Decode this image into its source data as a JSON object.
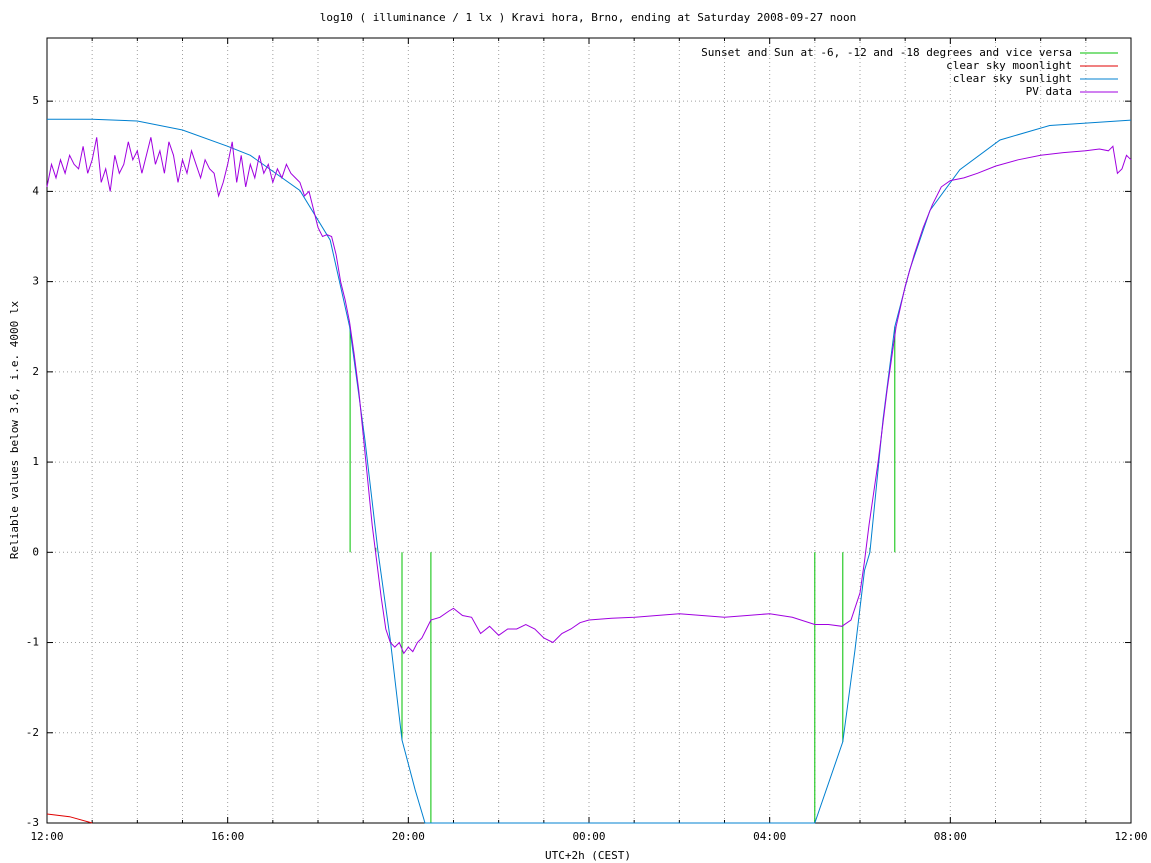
{
  "chart_data": {
    "type": "line",
    "title": "log10 ( illuminance / 1 lx ) Kravi hora, Brno, ending at Saturday 2008-09-27 noon",
    "x_label": "UTC+2h (CEST)",
    "y_label": "Reliable values below 3.6, i.e. 4000 lx",
    "xlim": [
      0,
      24
    ],
    "ylim": [
      -3,
      5.7
    ],
    "xticks": [
      {
        "value": 0,
        "label": "12:00"
      },
      {
        "value": 1,
        "label": null
      },
      {
        "value": 2,
        "label": null
      },
      {
        "value": 3,
        "label": null
      },
      {
        "value": 4,
        "label": "16:00"
      },
      {
        "value": 5,
        "label": null
      },
      {
        "value": 6,
        "label": null
      },
      {
        "value": 7,
        "label": null
      },
      {
        "value": 8,
        "label": "20:00"
      },
      {
        "value": 9,
        "label": null
      },
      {
        "value": 10,
        "label": null
      },
      {
        "value": 11,
        "label": null
      },
      {
        "value": 12,
        "label": "00:00"
      },
      {
        "value": 13,
        "label": null
      },
      {
        "value": 14,
        "label": null
      },
      {
        "value": 15,
        "label": null
      },
      {
        "value": 16,
        "label": "04:00"
      },
      {
        "value": 17,
        "label": null
      },
      {
        "value": 18,
        "label": null
      },
      {
        "value": 19,
        "label": null
      },
      {
        "value": 20,
        "label": "08:00"
      },
      {
        "value": 21,
        "label": null
      },
      {
        "value": 22,
        "label": null
      },
      {
        "value": 23,
        "label": null
      },
      {
        "value": 24,
        "label": "12:00"
      }
    ],
    "yticks": [
      -3,
      -2,
      -1,
      0,
      1,
      2,
      3,
      4,
      5
    ],
    "grid": true,
    "legend": "top-right",
    "series": [
      {
        "name": "Sunset and Sun at -6, -12 and -18 degrees and vice versa",
        "color": "#00c000",
        "x": [
          6.71,
          6.71,
          null,
          7.28,
          7.28,
          null,
          7.86,
          7.86,
          null,
          8.5,
          8.5,
          null,
          17.0,
          17.0,
          null,
          17.62,
          17.62,
          null,
          18.22,
          18.22,
          null,
          18.77,
          18.77
        ],
        "values": [
          0,
          2.5,
          null,
          0,
          0.05,
          null,
          0,
          -2.08,
          null,
          0,
          -3,
          null,
          0,
          -3,
          null,
          0,
          -2.1,
          null,
          0,
          0.05,
          null,
          0,
          2.5
        ]
      },
      {
        "name": "clear sky moonlight",
        "color": "#e00000",
        "x": [
          0,
          0.5,
          1.0
        ],
        "values": [
          -2.9,
          -2.93,
          -3.0
        ]
      },
      {
        "name": "clear sky sunlight",
        "color": "#0080d0",
        "x": [
          0,
          1.0,
          2.0,
          3.0,
          4.0,
          4.5,
          5.6,
          6.27,
          6.7,
          7.04,
          7.33,
          7.6,
          7.86,
          8.15,
          8.37,
          17.0,
          17.62,
          17.89,
          18.1,
          18.22,
          18.51,
          18.77,
          19.1,
          19.55,
          20.21,
          21.1,
          22.2,
          24.0
        ],
        "values": [
          4.8,
          4.8,
          4.78,
          4.68,
          4.5,
          4.4,
          4.01,
          3.46,
          2.5,
          1.24,
          0,
          -0.97,
          -2.08,
          -2.63,
          -3,
          -3,
          -2.1,
          -1.08,
          -0.2,
          0,
          1.47,
          2.5,
          3.13,
          3.79,
          4.24,
          4.57,
          4.73,
          4.79
        ]
      },
      {
        "name": "PV data",
        "color": "#a000e0",
        "x": [
          0,
          0.1,
          0.2,
          0.3,
          0.4,
          0.5,
          0.6,
          0.7,
          0.8,
          0.9,
          1.0,
          1.1,
          1.2,
          1.3,
          1.4,
          1.5,
          1.6,
          1.7,
          1.8,
          1.9,
          2.0,
          2.1,
          2.2,
          2.3,
          2.4,
          2.5,
          2.6,
          2.7,
          2.8,
          2.9,
          3.0,
          3.1,
          3.2,
          3.3,
          3.4,
          3.5,
          3.6,
          3.7,
          3.8,
          3.9,
          4.0,
          4.1,
          4.2,
          4.3,
          4.4,
          4.5,
          4.6,
          4.7,
          4.8,
          4.9,
          5.0,
          5.1,
          5.2,
          5.3,
          5.4,
          5.5,
          5.6,
          5.7,
          5.8,
          5.9,
          6.0,
          6.1,
          6.2,
          6.3,
          6.4,
          6.5,
          6.6,
          6.7,
          6.8,
          6.9,
          7.0,
          7.1,
          7.2,
          7.3,
          7.4,
          7.5,
          7.6,
          7.7,
          7.8,
          7.9,
          8.0,
          8.1,
          8.2,
          8.3,
          8.4,
          8.5,
          8.7,
          8.9,
          9.0,
          9.2,
          9.4,
          9.6,
          9.8,
          10.0,
          10.2,
          10.4,
          10.6,
          10.8,
          11.0,
          11.2,
          11.4,
          11.6,
          11.8,
          12.0,
          12.5,
          13.0,
          13.5,
          14.0,
          14.5,
          15.0,
          15.5,
          16.0,
          16.5,
          17.0,
          17.3,
          17.6,
          17.8,
          18.0,
          18.1,
          18.2,
          18.4,
          18.6,
          18.8,
          19.0,
          19.2,
          19.4,
          19.6,
          19.8,
          20.0,
          20.3,
          20.6,
          21.0,
          21.5,
          22.0,
          22.5,
          23.0,
          23.3,
          23.5,
          23.6,
          23.7,
          23.8,
          23.9,
          24.0
        ],
        "values": [
          4.05,
          4.3,
          4.15,
          4.35,
          4.2,
          4.4,
          4.3,
          4.25,
          4.5,
          4.2,
          4.35,
          4.6,
          4.1,
          4.25,
          4.0,
          4.4,
          4.2,
          4.3,
          4.55,
          4.35,
          4.45,
          4.2,
          4.4,
          4.6,
          4.3,
          4.45,
          4.2,
          4.55,
          4.4,
          4.1,
          4.35,
          4.2,
          4.45,
          4.3,
          4.15,
          4.35,
          4.25,
          4.2,
          3.95,
          4.1,
          4.3,
          4.55,
          4.1,
          4.4,
          4.05,
          4.3,
          4.15,
          4.4,
          4.2,
          4.3,
          4.1,
          4.25,
          4.15,
          4.3,
          4.2,
          4.15,
          4.1,
          3.95,
          4.0,
          3.8,
          3.6,
          3.5,
          3.52,
          3.5,
          3.3,
          3.0,
          2.8,
          2.55,
          2.2,
          1.8,
          1.3,
          0.8,
          0.3,
          -0.1,
          -0.5,
          -0.85,
          -1.0,
          -1.05,
          -1.0,
          -1.12,
          -1.05,
          -1.1,
          -1.0,
          -0.95,
          -0.85,
          -0.75,
          -0.72,
          -0.65,
          -0.62,
          -0.7,
          -0.72,
          -0.9,
          -0.82,
          -0.92,
          -0.85,
          -0.85,
          -0.8,
          -0.85,
          -0.95,
          -1.0,
          -0.9,
          -0.85,
          -0.78,
          -0.75,
          -0.73,
          -0.72,
          -0.7,
          -0.68,
          -0.7,
          -0.72,
          -0.7,
          -0.68,
          -0.72,
          -0.8,
          -0.8,
          -0.82,
          -0.75,
          -0.45,
          -0.1,
          0.3,
          1.0,
          1.8,
          2.5,
          2.95,
          3.3,
          3.6,
          3.85,
          4.05,
          4.12,
          4.15,
          4.2,
          4.28,
          4.35,
          4.4,
          4.43,
          4.45,
          4.47,
          4.45,
          4.5,
          4.2,
          4.25,
          4.4,
          4.35
        ]
      }
    ]
  }
}
